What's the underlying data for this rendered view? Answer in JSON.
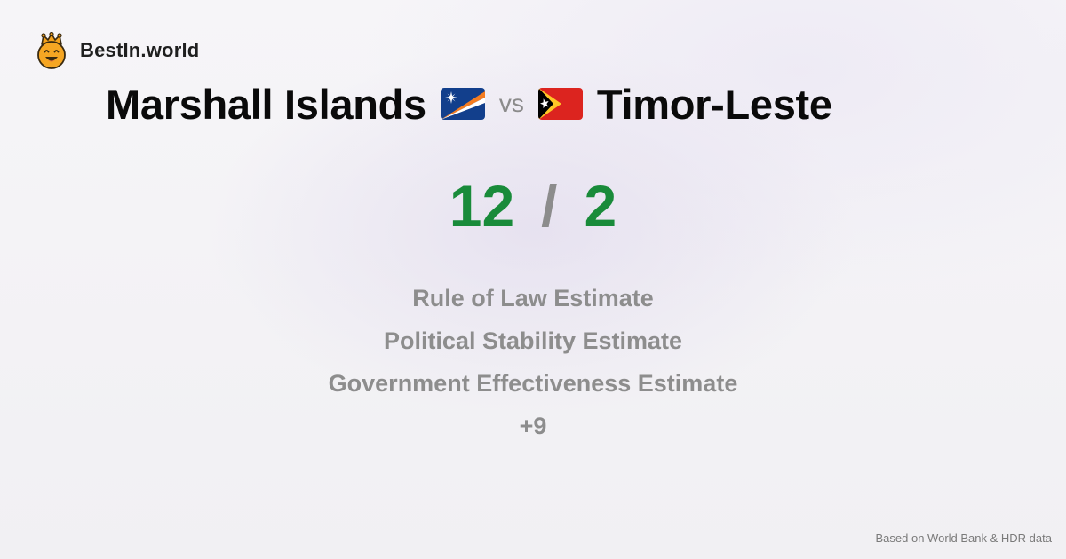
{
  "brand": {
    "name": "BestIn.world",
    "logo_icon": "crowned-smiley-icon"
  },
  "comparison": {
    "country_a": "Marshall Islands",
    "flag_a_icon": "marshall-islands-flag-icon",
    "vs_label": "vs",
    "country_b": "Timor-Leste",
    "flag_b_icon": "timor-leste-flag-icon"
  },
  "score": {
    "a": "12",
    "separator": "/",
    "b": "2"
  },
  "metrics": [
    "Rule of Law Estimate",
    "Political Stability Estimate",
    "Government Effectiveness Estimate",
    "+9"
  ],
  "footer": {
    "source": "Based on World Bank & HDR data"
  },
  "colors": {
    "score_green": "#198b3a",
    "muted_gray": "#8d8d8d",
    "title_black": "#0a0a0a"
  }
}
